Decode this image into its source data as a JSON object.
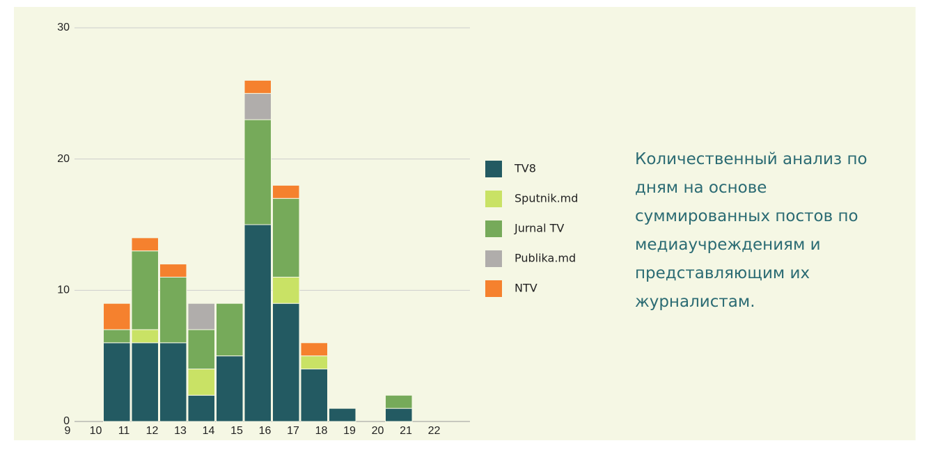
{
  "chart_data": {
    "type": "stacked_bar",
    "categories": [
      "9",
      "10",
      "11",
      "12",
      "13",
      "14",
      "15",
      "16",
      "17",
      "18",
      "19",
      "20",
      "21",
      "22"
    ],
    "series": [
      {
        "name": "TV8",
        "color": "#235a62",
        "values": [
          0,
          6,
          6,
          6,
          2,
          5,
          15,
          9,
          4,
          1,
          0,
          1,
          0,
          0
        ]
      },
      {
        "name": "Sputnik.md",
        "color": "#c9e265",
        "values": [
          0,
          0,
          1,
          0,
          2,
          0,
          0,
          2,
          1,
          0,
          0,
          0,
          0,
          0
        ]
      },
      {
        "name": "Jurnal TV",
        "color": "#76aa5a",
        "values": [
          0,
          1,
          6,
          5,
          3,
          4,
          8,
          6,
          0,
          0,
          0,
          1,
          0,
          0
        ]
      },
      {
        "name": "Publika.md",
        "color": "#b0adab",
        "values": [
          0,
          0,
          0,
          0,
          2,
          0,
          2,
          0,
          0,
          0,
          0,
          0,
          0,
          0
        ]
      },
      {
        "name": "NTV",
        "color": "#f5812e",
        "values": [
          0,
          2,
          1,
          1,
          0,
          0,
          1,
          1,
          1,
          0,
          0,
          0,
          0,
          0
        ]
      }
    ],
    "ylim": [
      0,
      30
    ],
    "yticks": [
      0,
      10,
      20,
      30
    ],
    "grid": true,
    "annotation": "Количественный анализ по дням на основе суммированных постов по медиаучреждениям и представляющим их журналистам."
  }
}
